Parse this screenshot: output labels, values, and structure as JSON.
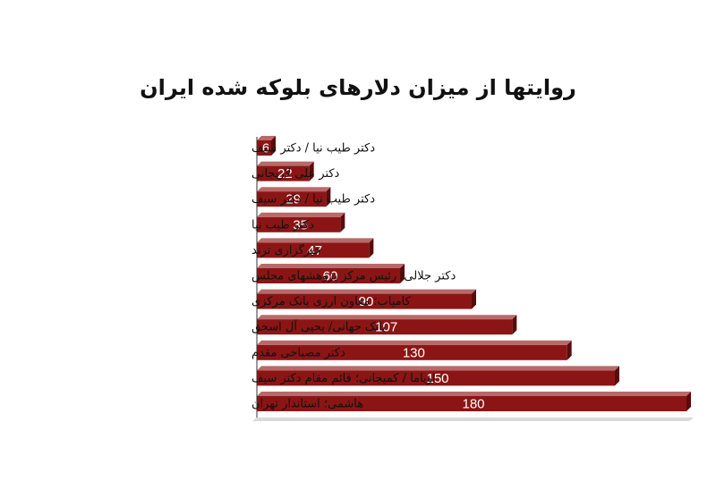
{
  "chart_data": {
    "type": "bar",
    "orientation": "horizontal",
    "title": "روایتها از میزان دلارهای بلوکه شده ایران",
    "xlabel": "",
    "ylabel": "",
    "xlim": [
      0,
      180
    ],
    "grid": false,
    "legend": "none",
    "categories": [
      "دکتر طیب نیا / دکتر سیف",
      "دکتر علی لاریجانی",
      "دکتر طیب نیا / دکتر سیف",
      "دکتر طیب نیا",
      "خبرگزاری ترند",
      "دکتر جلالی؛ رئیس مرکز پژوهشهای مجلس",
      "کامیاب؛ معاون ارزی بانک مرکزی",
      "بانک جهانی/ یحیی آل اسحق",
      "دکتر مصباحی مقدم",
      "اوباما / کمیجانی؛ قائم مقام دکتر سیف",
      "هاشمی؛ استاندار تهران"
    ],
    "values": [
      6,
      22,
      29,
      35,
      47,
      60,
      90,
      107,
      130,
      150,
      180
    ],
    "value_labels": [
      "6",
      "22",
      "29",
      "35",
      "47",
      "60",
      "90",
      "107",
      "130",
      "150",
      "180"
    ]
  },
  "colors": {
    "bar": "#8b1515",
    "bar_top": "#b86a6a",
    "bar_side": "#5a0b0b",
    "axis": "#333333",
    "value_text": "#ffffff"
  }
}
